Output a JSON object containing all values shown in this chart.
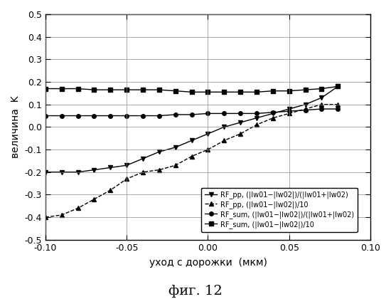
{
  "xlabel": "уход с дорожки  (мкм)",
  "ylabel": "величина  K",
  "caption": "фиг. 12",
  "xlim": [
    -0.1,
    0.1
  ],
  "ylim": [
    -0.5,
    0.5
  ],
  "xticks": [
    -0.1,
    -0.05,
    0.0,
    0.05,
    0.1
  ],
  "yticks": [
    -0.5,
    -0.4,
    -0.3,
    -0.2,
    -0.1,
    0.0,
    0.1,
    0.2,
    0.3,
    0.4,
    0.5
  ],
  "legend_labels": [
    "RF_pp, (|Iw01-|Iw02|)/(|Iw01+|Iw02)",
    "RF_pp, (|Iw01-|Iw02|)/10",
    "RF_sum, (|Iw01-|Iw02|)/(|Iw01+|Iw02)",
    "RF_sum, (|Iw01-|Iw02|)/10"
  ],
  "series": {
    "RF_pp_norm": {
      "x": [
        -0.1,
        -0.09,
        -0.08,
        -0.07,
        -0.06,
        -0.05,
        -0.04,
        -0.03,
        -0.02,
        -0.01,
        0.0,
        0.01,
        0.02,
        0.03,
        0.04,
        0.05,
        0.06,
        0.07,
        0.08
      ],
      "y": [
        -0.2,
        -0.2,
        -0.2,
        -0.19,
        -0.18,
        -0.17,
        -0.14,
        -0.11,
        -0.09,
        -0.06,
        -0.03,
        0.0,
        0.02,
        0.04,
        0.06,
        0.08,
        0.1,
        0.13,
        0.18
      ],
      "marker": "v",
      "linestyle": "-",
      "markersize": 5
    },
    "RF_pp_div10": {
      "x": [
        -0.1,
        -0.09,
        -0.08,
        -0.07,
        -0.06,
        -0.05,
        -0.04,
        -0.03,
        -0.02,
        -0.01,
        0.0,
        0.01,
        0.02,
        0.03,
        0.04,
        0.05,
        0.06,
        0.07,
        0.08
      ],
      "y": [
        -0.4,
        -0.39,
        -0.36,
        -0.32,
        -0.28,
        -0.23,
        -0.2,
        -0.19,
        -0.17,
        -0.13,
        -0.1,
        -0.06,
        -0.03,
        0.01,
        0.04,
        0.06,
        0.08,
        0.1,
        0.1
      ],
      "marker": "^",
      "linestyle": "--",
      "markersize": 5
    },
    "RF_sum_norm": {
      "x": [
        -0.1,
        -0.09,
        -0.08,
        -0.07,
        -0.06,
        -0.05,
        -0.04,
        -0.03,
        -0.02,
        -0.01,
        0.0,
        0.01,
        0.02,
        0.03,
        0.04,
        0.05,
        0.06,
        0.07,
        0.08
      ],
      "y": [
        0.05,
        0.05,
        0.05,
        0.05,
        0.05,
        0.05,
        0.05,
        0.05,
        0.055,
        0.055,
        0.06,
        0.06,
        0.06,
        0.06,
        0.065,
        0.07,
        0.075,
        0.08,
        0.08
      ],
      "marker": "o",
      "linestyle": "-",
      "markersize": 4
    },
    "RF_sum_div10": {
      "x": [
        -0.1,
        -0.09,
        -0.08,
        -0.07,
        -0.06,
        -0.05,
        -0.04,
        -0.03,
        -0.02,
        -0.01,
        0.0,
        0.01,
        0.02,
        0.03,
        0.04,
        0.05,
        0.06,
        0.07,
        0.08
      ],
      "y": [
        0.17,
        0.17,
        0.17,
        0.165,
        0.165,
        0.165,
        0.165,
        0.165,
        0.16,
        0.155,
        0.155,
        0.155,
        0.155,
        0.155,
        0.16,
        0.16,
        0.165,
        0.17,
        0.18
      ],
      "marker": "s",
      "linestyle": "-",
      "markersize": 4
    }
  },
  "background_color": "#ffffff"
}
